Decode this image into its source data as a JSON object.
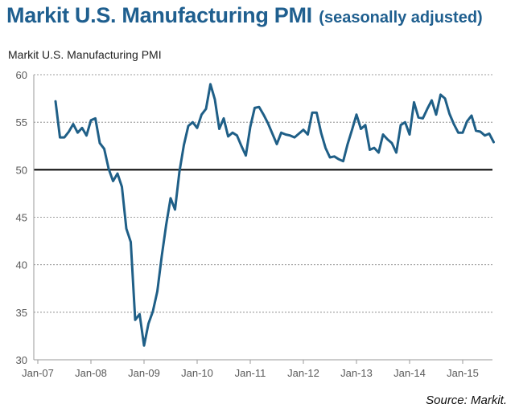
{
  "header": {
    "title": "Markit U.S. Manufacturing PMI",
    "title_suffix": "(seasonally adjusted)"
  },
  "footer": {
    "source": "Source: Markit."
  },
  "colors": {
    "title": "#1f5f8f",
    "line": "#1f5f87",
    "grid": "#7f7f7f",
    "threshold": "#000000"
  },
  "chart_data": {
    "type": "line",
    "title": "Markit U.S. Manufacturing PMI",
    "xlabel": "",
    "ylabel": "",
    "ylim": [
      30,
      60
    ],
    "yticks": [
      30,
      35,
      40,
      45,
      50,
      55,
      60
    ],
    "grid": "horizontal dashed",
    "threshold": 50,
    "xtick_labels": [
      "Jan-07",
      "Jan-08",
      "Jan-09",
      "Jan-10",
      "Jan-11",
      "Jan-12",
      "Jan-13",
      "Jan-14",
      "Jan-15"
    ],
    "x_start": "May-07",
    "x_step": "1 month",
    "series": [
      {
        "name": "Markit U.S. Manufacturing PMI",
        "values": [
          57.2,
          53.4,
          53.4,
          54.0,
          54.8,
          53.9,
          54.4,
          53.6,
          55.2,
          55.4,
          52.8,
          52.2,
          50.1,
          48.8,
          49.6,
          48.2,
          43.8,
          42.4,
          34.2,
          34.8,
          31.5,
          33.8,
          35.1,
          37.2,
          40.9,
          44.2,
          47.0,
          45.8,
          49.8,
          52.6,
          54.6,
          55.0,
          54.4,
          55.8,
          56.4,
          59.0,
          57.4,
          54.3,
          55.4,
          53.5,
          53.9,
          53.6,
          52.5,
          51.5,
          54.5,
          56.5,
          56.6,
          55.8,
          54.9,
          53.8,
          52.7,
          53.9,
          53.7,
          53.6,
          53.4,
          53.8,
          54.2,
          53.7,
          56.0,
          56.0,
          53.9,
          52.3,
          51.3,
          51.4,
          51.1,
          50.9,
          52.7,
          54.2,
          55.8,
          54.3,
          54.7,
          52.1,
          52.3,
          51.8,
          53.7,
          53.2,
          52.8,
          51.8,
          54.7,
          55.0,
          53.7,
          57.1,
          55.5,
          55.4,
          56.4,
          57.3,
          55.8,
          57.9,
          57.5,
          55.9,
          54.8,
          53.9,
          53.9,
          55.1,
          55.7,
          54.1,
          54.0,
          53.6,
          53.8,
          52.9
        ]
      }
    ]
  }
}
